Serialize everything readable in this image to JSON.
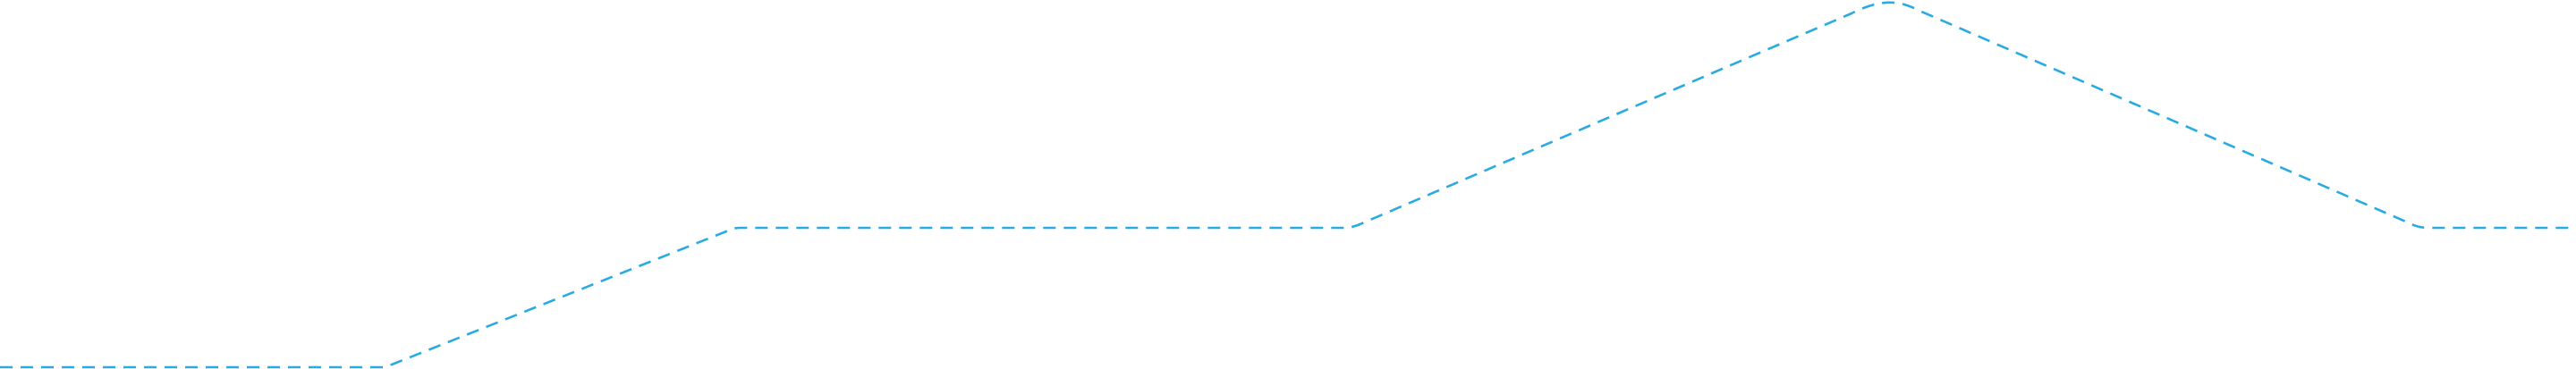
{
  "graphic": {
    "name": "dashed-step-connector-line",
    "stroke_color": "#29abe2",
    "background_color": "#ffffff",
    "style": "dashed"
  }
}
